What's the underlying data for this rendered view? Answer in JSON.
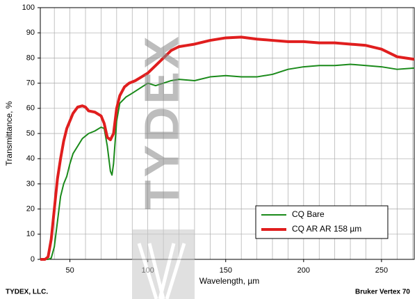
{
  "chart_data": {
    "type": "line",
    "y_label": "Transmittance, %",
    "x_label": "Wavelength, µm",
    "footer_left": "TYDEX, LLC.",
    "footer_right": "Bruker Vertex 70",
    "watermark": "TYDEX",
    "xlim": [
      31,
      271
    ],
    "ylim": [
      0,
      100
    ],
    "xticks": [
      50,
      100,
      150,
      200,
      250
    ],
    "xgrid": [
      40,
      50,
      60,
      70,
      80,
      90,
      100,
      110,
      120,
      130,
      140,
      150,
      160,
      170,
      180,
      190,
      200,
      210,
      220,
      230,
      240,
      250,
      260,
      270
    ],
    "yticks": [
      0,
      10,
      20,
      30,
      40,
      50,
      60,
      70,
      80,
      90,
      100
    ],
    "grid": true,
    "legend": "lower right",
    "series": [
      {
        "name": "CQ Bare",
        "color": "#1a8a1a",
        "x": [
          31,
          36,
          38,
          40,
          42,
          44,
          46,
          48,
          50,
          52,
          55,
          58,
          62,
          66,
          70,
          72,
          74,
          76,
          77,
          78,
          80,
          82,
          86,
          90,
          95,
          100,
          105,
          110,
          115,
          120,
          130,
          140,
          150,
          160,
          170,
          180,
          190,
          200,
          210,
          220,
          230,
          240,
          250,
          260,
          271
        ],
        "values": [
          0,
          0,
          0.5,
          5,
          15,
          25,
          30,
          33,
          38,
          42,
          45,
          48,
          50,
          51,
          52.5,
          52,
          45,
          35,
          33.5,
          38,
          55,
          62,
          64.5,
          66,
          68,
          70,
          69,
          70,
          71,
          71.5,
          71,
          72.5,
          73,
          72.5,
          72.5,
          73.5,
          75.5,
          76.5,
          77,
          77,
          77.5,
          77,
          76.5,
          75.5,
          76
        ]
      },
      {
        "name": "CQ AR AR 158 µm",
        "color": "#e01e1e",
        "x": [
          31,
          34,
          36,
          38,
          40,
          42,
          44,
          46,
          48,
          50,
          52,
          55,
          58,
          60,
          62,
          66,
          70,
          72,
          74,
          76,
          78,
          80,
          82,
          85,
          88,
          92,
          96,
          100,
          105,
          110,
          115,
          120,
          125,
          130,
          140,
          150,
          160,
          170,
          180,
          190,
          200,
          210,
          220,
          230,
          240,
          250,
          260,
          271
        ],
        "values": [
          0,
          0,
          1,
          8,
          20,
          32,
          40,
          47,
          52,
          55,
          58,
          60.5,
          61,
          60.5,
          59,
          58.5,
          57,
          54,
          48.5,
          47.5,
          50,
          60,
          65,
          68.5,
          70,
          71,
          72.5,
          74,
          77,
          80,
          83,
          84.5,
          85,
          85.5,
          87,
          88,
          88.3,
          87.5,
          87,
          86.5,
          86.5,
          86,
          86,
          85.5,
          85,
          83.5,
          80.5,
          79.5
        ]
      }
    ]
  }
}
